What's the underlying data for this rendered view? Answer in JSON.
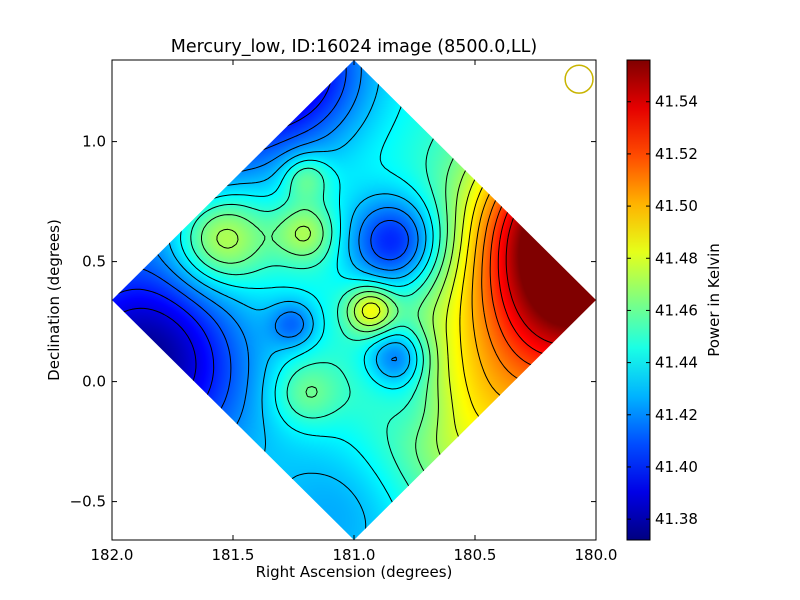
{
  "chart_data": {
    "type": "heatmap",
    "title": "Mercury_low, ID:16024 image (8500.0,LL)",
    "xlabel": "Right Ascension (degrees)",
    "ylabel": "Declination (degrees)",
    "xlim": [
      182.0,
      180.0
    ],
    "ylim": [
      -0.66,
      1.34
    ],
    "xticks": [
      182.0,
      181.5,
      181.0,
      180.5,
      180.0
    ],
    "xtick_labels": [
      "182.0",
      "181.5",
      "181.0",
      "180.5",
      "180.0"
    ],
    "yticks": [
      -0.5,
      0.0,
      0.5,
      1.0
    ],
    "ytick_labels": [
      "−0.5",
      "0.0",
      "0.5",
      "1.0"
    ],
    "colorbar": {
      "label": "Power in Kelvin",
      "range": [
        41.372,
        41.556
      ],
      "ticks": [
        41.38,
        41.4,
        41.42,
        41.44,
        41.46,
        41.48,
        41.5,
        41.52,
        41.54
      ],
      "tick_labels": [
        "41.38",
        "41.40",
        "41.42",
        "41.44",
        "41.46",
        "41.48",
        "41.50",
        "41.52",
        "41.54"
      ],
      "colormap": "jet"
    },
    "footprint": {
      "shape": "diamond",
      "center_ra": 181.0,
      "center_dec": 0.34,
      "half_width_deg": 1.0
    },
    "beam": {
      "ra": 180.07,
      "dec": 1.26,
      "radius_deg": 0.058,
      "color": "#c8b400"
    },
    "contour_levels": [
      41.39,
      41.4,
      41.41,
      41.42,
      41.43,
      41.44,
      41.45,
      41.46,
      41.47,
      41.48,
      41.49,
      41.5,
      41.51,
      41.52,
      41.53,
      41.54
    ],
    "field": {
      "base": 41.445,
      "features": [
        {
          "ra": 180.03,
          "dec": 0.48,
          "amp": 0.11,
          "sigma": 0.3
        },
        {
          "ra": 180.15,
          "dec": 0.75,
          "amp": 0.05,
          "sigma": 0.25
        },
        {
          "ra": 180.3,
          "dec": 0.05,
          "amp": 0.04,
          "sigma": 0.35
        },
        {
          "ra": 181.85,
          "dec": 1.2,
          "amp": -0.07,
          "sigma": 0.35
        },
        {
          "ra": 181.25,
          "dec": 1.3,
          "amp": -0.05,
          "sigma": 0.22
        },
        {
          "ra": 181.9,
          "dec": 0.12,
          "amp": -0.055,
          "sigma": 0.28
        },
        {
          "ra": 181.72,
          "dec": -0.05,
          "amp": -0.02,
          "sigma": 0.3
        },
        {
          "ra": 181.55,
          "dec": 0.6,
          "amp": 0.045,
          "sigma": 0.14
        },
        {
          "ra": 181.2,
          "dec": 0.62,
          "amp": 0.03,
          "sigma": 0.09
        },
        {
          "ra": 181.2,
          "dec": 0.85,
          "amp": 0.025,
          "sigma": 0.07
        },
        {
          "ra": 181.2,
          "dec": -0.05,
          "amp": 0.022,
          "sigma": 0.1
        },
        {
          "ra": 180.93,
          "dec": 0.3,
          "amp": 0.04,
          "sigma": 0.07
        },
        {
          "ra": 180.83,
          "dec": 0.58,
          "amp": -0.05,
          "sigma": 0.14
        },
        {
          "ra": 180.82,
          "dec": 0.1,
          "amp": -0.04,
          "sigma": 0.09
        },
        {
          "ra": 181.25,
          "dec": 0.24,
          "amp": -0.025,
          "sigma": 0.07
        },
        {
          "ra": 180.75,
          "dec": -0.1,
          "amp": -0.012,
          "sigma": 0.1
        },
        {
          "ra": 180.55,
          "dec": -0.3,
          "amp": 0.015,
          "sigma": 0.25
        },
        {
          "ra": 181.05,
          "dec": -0.55,
          "amp": -0.02,
          "sigma": 0.25
        }
      ]
    }
  }
}
